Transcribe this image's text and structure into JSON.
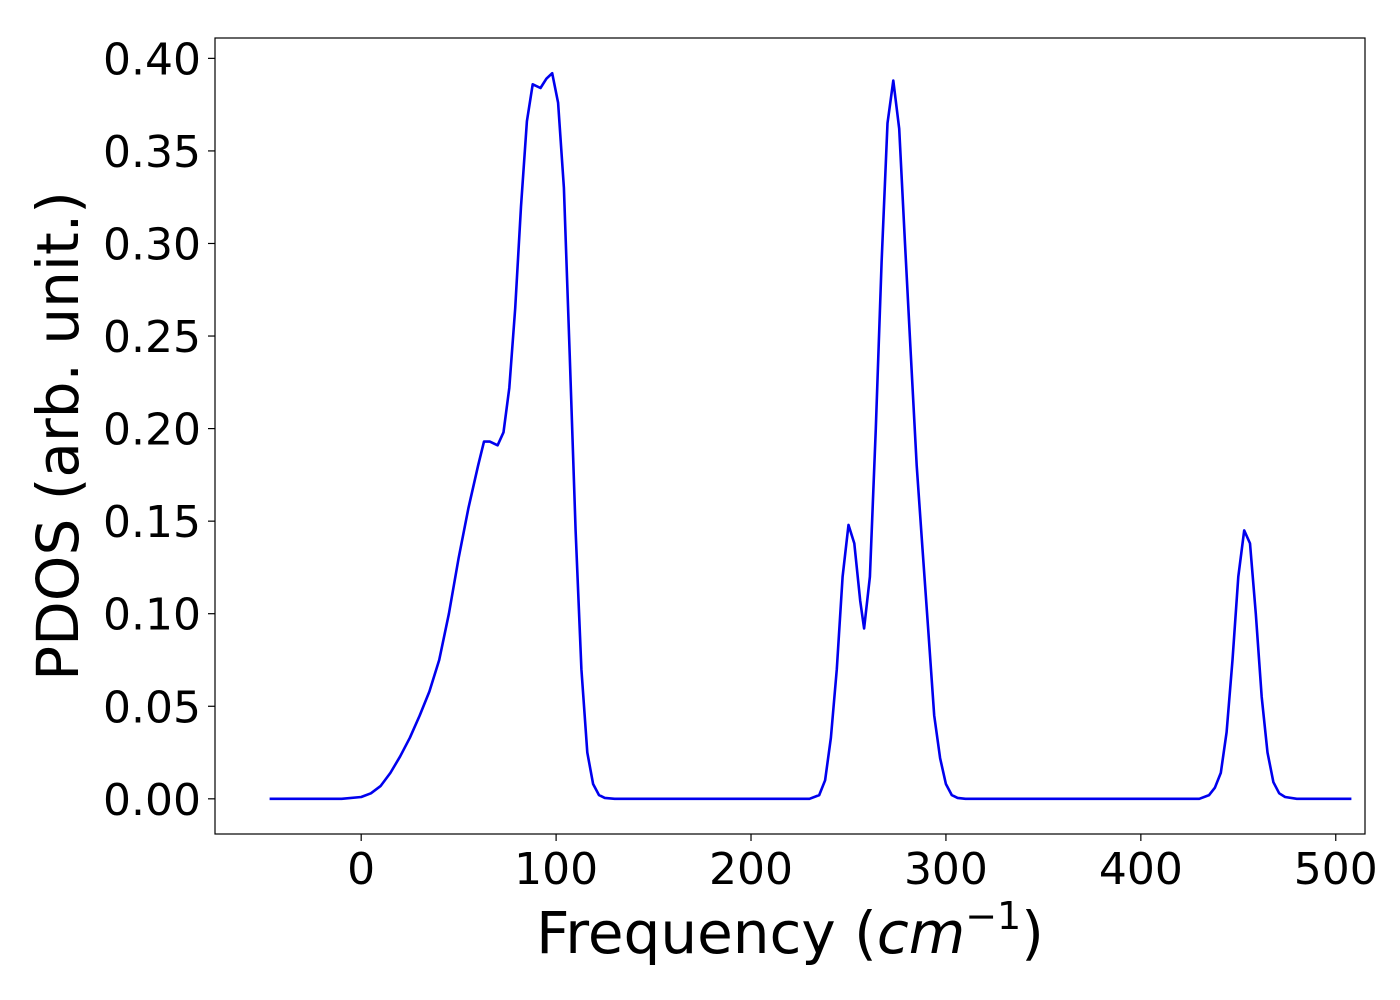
{
  "chart_data": {
    "type": "line",
    "title": "",
    "xlabel": "Frequency (",
    "xlabel_math": "cm",
    "xlabel_exponent": "−1",
    "xlabel_close": ")",
    "ylabel": "PDOS (arb. unit.)",
    "xlim": [
      -75,
      515
    ],
    "ylim": [
      -0.019,
      0.411
    ],
    "grid": false,
    "legend": "none",
    "line_color": "#0000ee",
    "xticks": [
      0,
      100,
      200,
      300,
      400,
      500
    ],
    "xtick_labels": [
      "0",
      "100",
      "200",
      "300",
      "400",
      "500"
    ],
    "yticks": [
      0.0,
      0.05,
      0.1,
      0.15,
      0.2,
      0.25,
      0.3,
      0.35,
      0.4
    ],
    "ytick_labels": [
      "0.00",
      "0.05",
      "0.10",
      "0.15",
      "0.20",
      "0.25",
      "0.30",
      "0.35",
      "0.40"
    ],
    "series": [
      {
        "x": [
          -47,
          -30,
          -10,
          0,
          5,
          10,
          15,
          20,
          25,
          30,
          35,
          40,
          45,
          50,
          55,
          60,
          63,
          66,
          70,
          73,
          76,
          79,
          82,
          85,
          88,
          92,
          95,
          98,
          101,
          104,
          107,
          110,
          113,
          116,
          119,
          122,
          125,
          130,
          140,
          160,
          200,
          230,
          235,
          238,
          241,
          244,
          247,
          250,
          253,
          256,
          258,
          261,
          264,
          267,
          270,
          273,
          276,
          279,
          282,
          285,
          288,
          291,
          294,
          297,
          300,
          303,
          306,
          310,
          320,
          350,
          400,
          430,
          435,
          438,
          441,
          444,
          447,
          450,
          453,
          456,
          459,
          462,
          465,
          468,
          471,
          474,
          480,
          490,
          508
        ],
        "y": [
          0,
          0,
          0,
          0.001,
          0.003,
          0.007,
          0.014,
          0.023,
          0.033,
          0.045,
          0.058,
          0.075,
          0.1,
          0.13,
          0.157,
          0.18,
          0.193,
          0.193,
          0.191,
          0.198,
          0.222,
          0.265,
          0.32,
          0.366,
          0.386,
          0.384,
          0.389,
          0.392,
          0.376,
          0.33,
          0.24,
          0.145,
          0.07,
          0.025,
          0.008,
          0.002,
          0.0005,
          0,
          0,
          0,
          0,
          0,
          0.002,
          0.01,
          0.033,
          0.07,
          0.12,
          0.148,
          0.138,
          0.107,
          0.092,
          0.12,
          0.2,
          0.29,
          0.365,
          0.388,
          0.362,
          0.3,
          0.24,
          0.18,
          0.135,
          0.09,
          0.045,
          0.022,
          0.008,
          0.002,
          0.0005,
          0,
          0,
          0,
          0,
          0,
          0.002,
          0.006,
          0.014,
          0.036,
          0.075,
          0.12,
          0.145,
          0.138,
          0.1,
          0.055,
          0.025,
          0.009,
          0.003,
          0.001,
          0,
          0,
          0
        ]
      }
    ]
  }
}
